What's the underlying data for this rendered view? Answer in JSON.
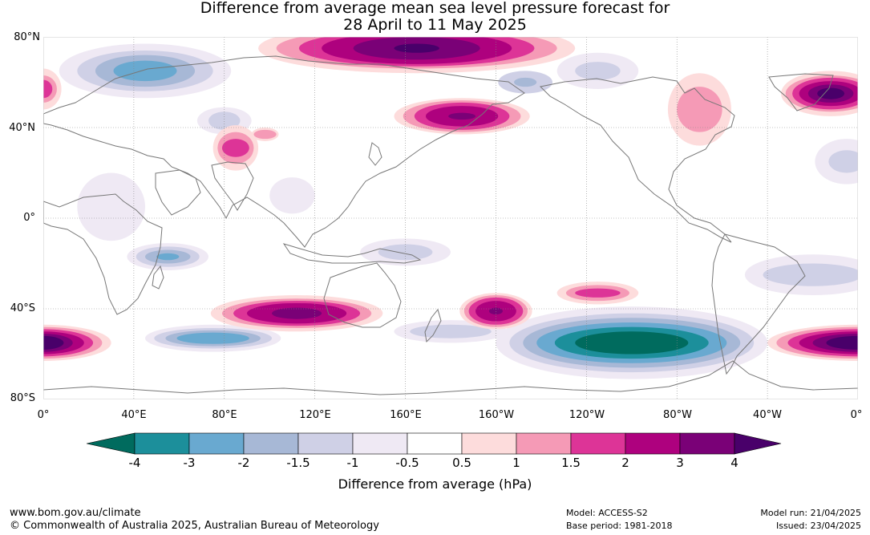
{
  "title": {
    "line1": "Difference from average mean sea level pressure forecast for",
    "line2": "28 April to 11 May 2025"
  },
  "map": {
    "lat_labels": [
      "80°N",
      "40°N",
      "0°",
      "40°S",
      "80°S"
    ],
    "lon_labels": [
      "0°",
      "40°E",
      "80°E",
      "120°E",
      "160°E",
      "160°W",
      "120°W",
      "80°W",
      "40°W",
      "0°"
    ],
    "anomaly_colors": {
      "le_-4": "#006b5e",
      "-4_-3": "#1c8f9b",
      "-3_-2": "#69a9d0",
      "-2_-1.5": "#a7b8d6",
      "-1.5_-1": "#cfd0e6",
      "-1_-0.5": "#efe9f4",
      "-0.5_0.5": "#ffffff",
      "0.5_1": "#fddcdc",
      "1_1.5": "#f59ab6",
      "1.5_2": "#dd3497",
      "2_3": "#ae017e",
      "3_4": "#7a0177",
      "ge_4": "#49006a"
    }
  },
  "colorbar": {
    "ticks": [
      "-4",
      "-3",
      "-2",
      "-1.5",
      "-1",
      "-0.5",
      "0.5",
      "1",
      "1.5",
      "2",
      "3",
      "4"
    ],
    "colors": [
      "#006b5e",
      "#1c8f9b",
      "#69a9d0",
      "#a7b8d6",
      "#cfd0e6",
      "#efe9f4",
      "#ffffff",
      "#fddcdc",
      "#f59ab6",
      "#dd3497",
      "#ae017e",
      "#7a0177",
      "#49006a"
    ],
    "label": "Difference from average (hPa)"
  },
  "footer": {
    "website": "www.bom.gov.au/climate",
    "copyright": "© Commonwealth of Australia 2025, Australian Bureau of Meteorology",
    "model": "Model: ACCESS-S2",
    "base_period": "Base period: 1981-2018",
    "model_run": "Model run: 21/04/2025",
    "issued": "Issued: 23/04/2025"
  }
}
